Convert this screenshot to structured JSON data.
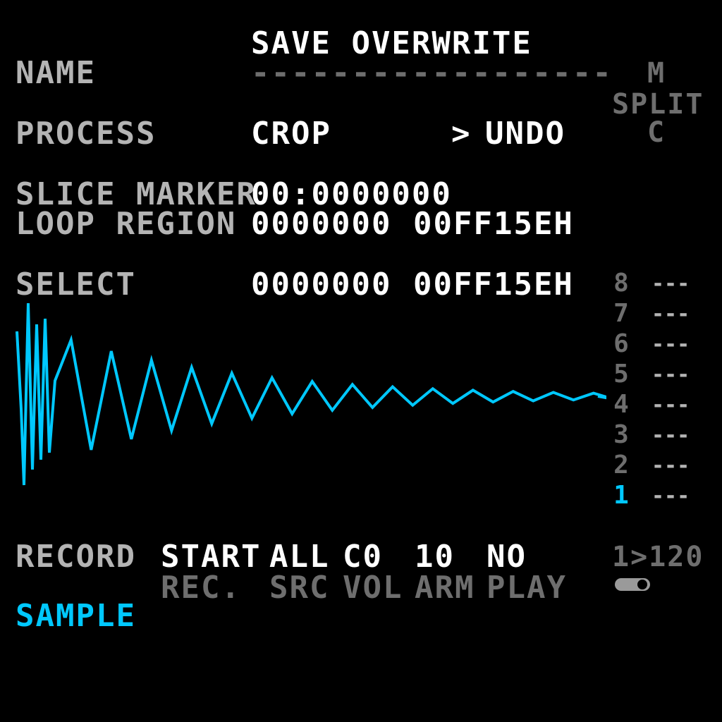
{
  "header": {
    "title": "SAVE OVERWRITE"
  },
  "name_row": {
    "label": "NAME",
    "value": "------------------"
  },
  "side_panel": {
    "mode_top": "M",
    "split_label": "SPLIT",
    "mode_bottom": "C"
  },
  "process_row": {
    "label": "PROCESS",
    "action": "CROP",
    "cursor": ">",
    "undo": "UNDO"
  },
  "slice_marker_row": {
    "label": "SLICE MARKER",
    "value": "00:0000000"
  },
  "loop_region_row": {
    "label": "LOOP REGION",
    "start": "0000000",
    "end": "00FF15EH"
  },
  "select_row": {
    "label": "SELECT",
    "start": "0000000",
    "end": "00FF15EH"
  },
  "slices": [
    {
      "number": "8",
      "value": "---",
      "active": false
    },
    {
      "number": "7",
      "value": "---",
      "active": false
    },
    {
      "number": "6",
      "value": "---",
      "active": false
    },
    {
      "number": "5",
      "value": "---",
      "active": false
    },
    {
      "number": "4",
      "value": "---",
      "active": false
    },
    {
      "number": "3",
      "value": "---",
      "active": false
    },
    {
      "number": "2",
      "value": "---",
      "active": false
    },
    {
      "number": "1",
      "value": "---",
      "active": true
    }
  ],
  "record_row": {
    "label": "RECORD",
    "rec_value": "START",
    "src_value": "ALL",
    "vol_value": "C0",
    "arm_value": "10",
    "play_value": "NO",
    "tempo": "1>120"
  },
  "record_sublabels": {
    "rec": "REC.",
    "src": "SRC",
    "vol": "VOL",
    "arm": "ARM",
    "play": "PLAY"
  },
  "footer": {
    "page_label": "SAMPLE"
  },
  "colors": {
    "background": "#000000",
    "label": "#b4b4b4",
    "value": "#ffffff",
    "dim": "#6e6e6e",
    "accent": "#00c8ff"
  },
  "waveform": {
    "type": "decaying-oscillation",
    "cycles": 14
  }
}
